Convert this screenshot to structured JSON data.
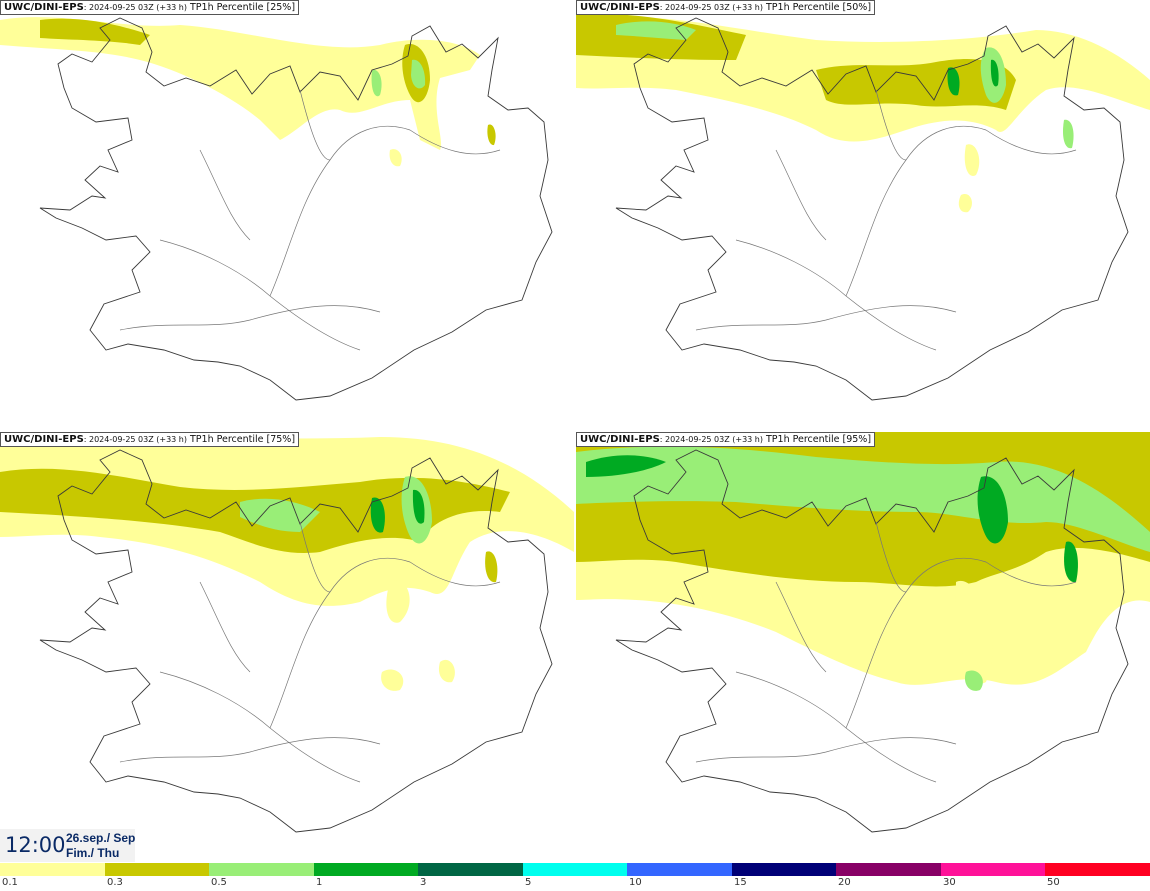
{
  "panels": [
    {
      "model": "UWC/DINI-EPS",
      "run": ": 2024-09-25 03Z (+33 h)",
      "product": " TP1h Percentile [25%]"
    },
    {
      "model": "UWC/DINI-EPS",
      "run": ": 2024-09-25 03Z (+33 h)",
      "product": " TP1h Percentile [50%]"
    },
    {
      "model": "UWC/DINI-EPS",
      "run": ": 2024-09-25 03Z (+33 h)",
      "product": " TP1h Percentile [75%]"
    },
    {
      "model": "UWC/DINI-EPS",
      "run": ": 2024-09-25 03Z (+33 h)",
      "product": " TP1h Percentile [95%]"
    }
  ],
  "valid_time": {
    "time": "12:00",
    "date": "26.sep./ Sep",
    "day": "Fim./ Thu"
  },
  "legend": {
    "colors": [
      "#ffff99",
      "#c8c800",
      "#99ee77",
      "#00aa22",
      "#006644",
      "#00ffee",
      "#3366ff",
      "#000077",
      "#880066",
      "#ff1199",
      "#ff0022"
    ],
    "ticks": [
      "0.1",
      "0.3",
      "0.5",
      "1",
      "3",
      "5",
      "10",
      "15",
      "20",
      "30",
      "50"
    ]
  },
  "colors": {
    "outline": "#3a3a3a",
    "roads": "#777777"
  }
}
